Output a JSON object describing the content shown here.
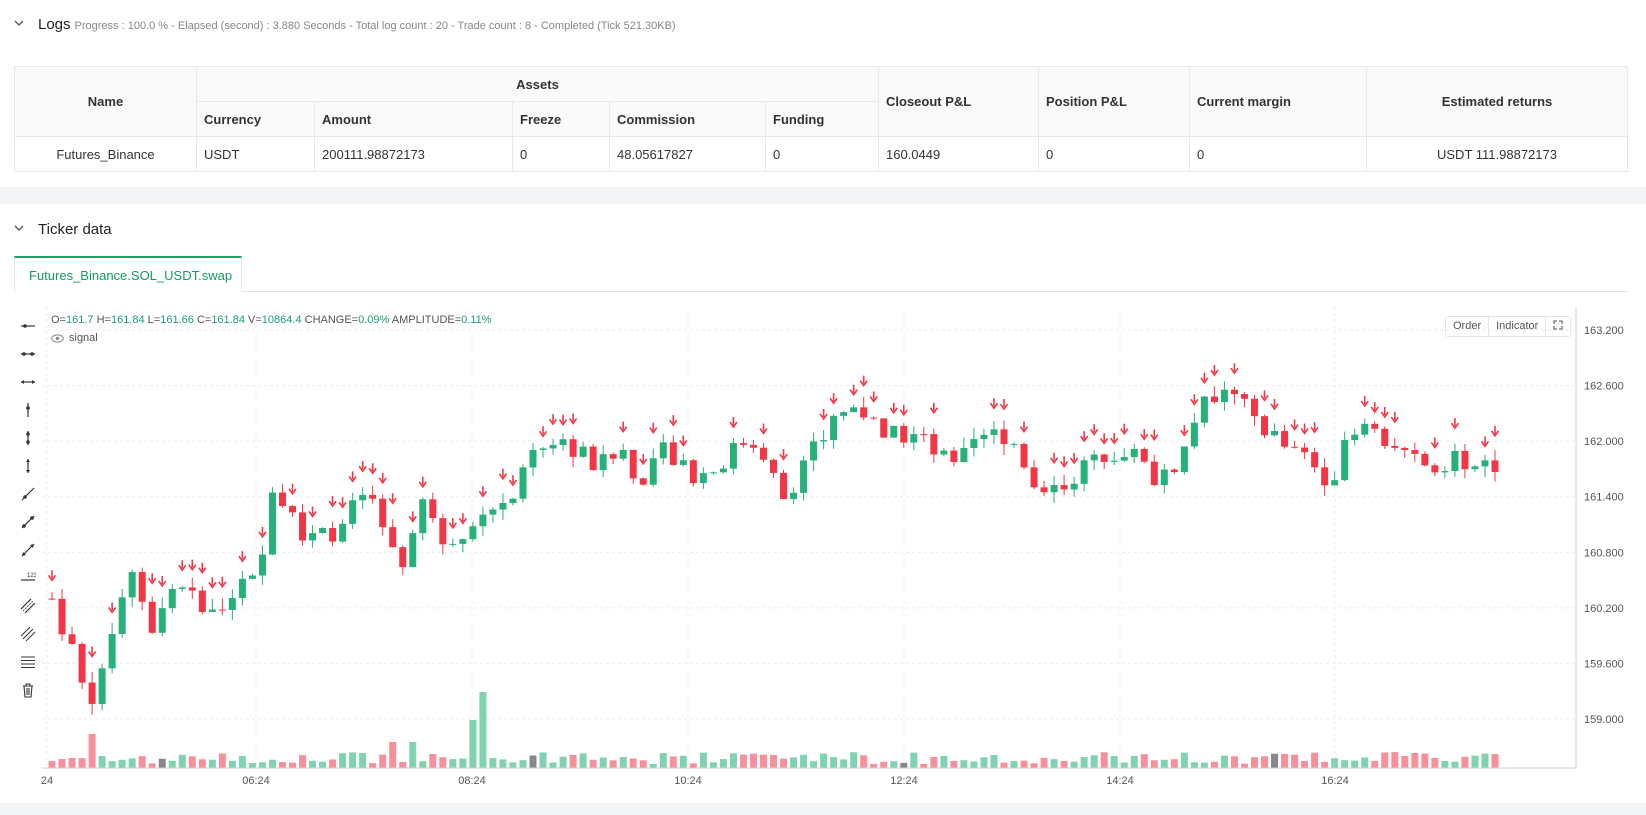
{
  "logs": {
    "title": "Logs",
    "status": "Progress : 100.0 % - Elapsed (second) : 3.880  Seconds - Total log count : 20 - Trade count : 8 - Completed (Tick 521.30KB)"
  },
  "assets_table": {
    "headers": {
      "name": "Name",
      "assets": "Assets",
      "currency": "Currency",
      "amount": "Amount",
      "freeze": "Freeze",
      "commission": "Commission",
      "funding": "Funding",
      "closeout_pnl": "Closeout P&L",
      "position_pnl": "Position P&L",
      "current_margin": "Current margin",
      "estimated_returns": "Estimated returns"
    },
    "row": {
      "name": "Futures_Binance",
      "currency": "USDT",
      "amount": "200111.98872173",
      "freeze": "0",
      "commission": "48.05617827",
      "funding": "0",
      "closeout_pnl": "160.0449",
      "position_pnl": "0",
      "current_margin": "0",
      "estimated_returns": "USDT 111.98872173"
    }
  },
  "ticker": {
    "title": "Ticker data",
    "tab": "Futures_Binance.SOL_USDT.swap",
    "ohlc": {
      "o_label": "O=",
      "o": "161.7",
      "h_label": "H=",
      "h": "161.84",
      "l_label": "L=",
      "l": "161.66",
      "c_label": "C=",
      "c": "161.84",
      "v_label": "V=",
      "v": "10864.4",
      "change_label": "CHANGE=",
      "change": "0.09%",
      "amp_label": "AMPLITUDE=",
      "amp": "0.11%"
    },
    "legend_signal": "signal",
    "buttons": {
      "order": "Order",
      "indicator": "Indicator"
    },
    "tools": [
      "horizontal-ray-icon",
      "horizontal-segment-icon",
      "horizontal-line-icon",
      "vertical-ray-icon",
      "vertical-segment-icon",
      "vertical-line-icon",
      "trend-ray-icon",
      "trend-segment-icon",
      "trend-line-icon",
      "price-range-icon",
      "parallel-channel-icon",
      "fib-channel-icon",
      "fib-levels-icon",
      "trash-icon"
    ]
  },
  "chart_data": {
    "type": "candlestick",
    "yticks": [
      "163.200",
      "162.600",
      "162.000",
      "161.400",
      "160.800",
      "160.200",
      "159.600",
      "159.000"
    ],
    "ylim": [
      158.5,
      163.4
    ],
    "xticks": [
      "24",
      "06:24",
      "08:24",
      "10:24",
      "12:24",
      "14:24",
      "16:24"
    ],
    "up_color": "#26b07a",
    "down_color": "#f23645",
    "signal_marker": "down-arrow",
    "last": {
      "open": 161.7,
      "high": 161.84,
      "low": 161.66,
      "close": 161.84,
      "volume": 10864.4
    }
  },
  "colors": {
    "accent": "#1aa36b",
    "up": "#26b07a",
    "down": "#f23645"
  }
}
